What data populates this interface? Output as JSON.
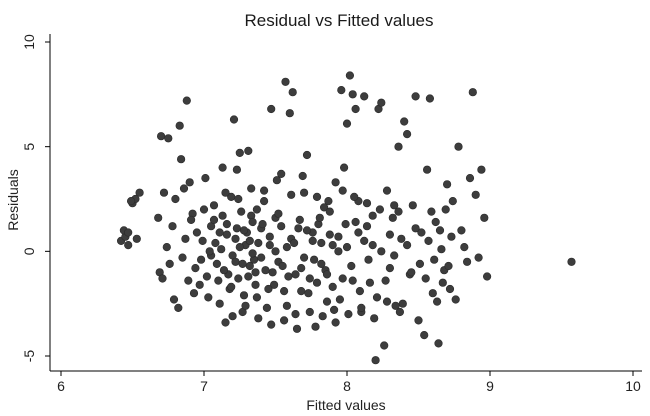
{
  "chart_data": {
    "type": "scatter",
    "title": "Residual vs Fitted values",
    "xlabel": "Fitted values",
    "ylabel": "Residuals",
    "xlim": [
      6,
      10
    ],
    "ylim": [
      -5,
      10
    ],
    "x_ticks": [
      6,
      7,
      8,
      9,
      10
    ],
    "y_ticks": [
      -5,
      0,
      5,
      10
    ],
    "x_tick_labels": [
      "6",
      "7",
      "8",
      "9",
      "10"
    ],
    "y_tick_labels": [
      "-5",
      "0",
      "5",
      "10"
    ],
    "grid": false,
    "legend": "none",
    "point_color": "#3d3d3d",
    "points": [
      [
        6.42,
        0.5
      ],
      [
        6.45,
        0.7
      ],
      [
        6.47,
        0.3
      ],
      [
        6.44,
        1.0
      ],
      [
        6.5,
        2.3
      ],
      [
        6.52,
        2.5
      ],
      [
        6.55,
        2.8
      ],
      [
        6.49,
        2.4
      ],
      [
        6.53,
        0.6
      ],
      [
        6.47,
        0.9
      ],
      [
        6.7,
        5.5
      ],
      [
        6.75,
        5.4
      ],
      [
        6.83,
        6.0
      ],
      [
        6.88,
        7.2
      ],
      [
        6.68,
        1.6
      ],
      [
        6.72,
        2.8
      ],
      [
        6.78,
        1.2
      ],
      [
        6.8,
        2.5
      ],
      [
        6.69,
        -1.0
      ],
      [
        6.71,
        -1.3
      ],
      [
        6.74,
        0.2
      ],
      [
        6.76,
        -0.6
      ],
      [
        6.79,
        -2.3
      ],
      [
        6.82,
        -2.7
      ],
      [
        6.84,
        4.4
      ],
      [
        6.86,
        3.0
      ],
      [
        6.9,
        3.3
      ],
      [
        6.92,
        1.8
      ],
      [
        6.94,
        -0.8
      ],
      [
        6.97,
        -1.6
      ],
      [
        6.99,
        0.5
      ],
      [
        7.01,
        3.5
      ],
      [
        7.03,
        -2.2
      ],
      [
        7.05,
        1.2
      ],
      [
        7.07,
        2.2
      ],
      [
        7.09,
        -0.6
      ],
      [
        7.11,
        0.9
      ],
      [
        7.13,
        4.0
      ],
      [
        7.15,
        -3.4
      ],
      [
        7.17,
        -1.1
      ],
      [
        7.19,
        2.6
      ],
      [
        7.21,
        6.3
      ],
      [
        7.23,
        3.9
      ],
      [
        7.25,
        4.7
      ],
      [
        7.27,
        -2.9
      ],
      [
        7.29,
        0.3
      ],
      [
        7.31,
        4.8
      ],
      [
        7.33,
        1.7
      ],
      [
        7.35,
        -0.4
      ],
      [
        7.37,
        2.0
      ],
      [
        7.12,
        0.1
      ],
      [
        7.14,
        -0.9
      ],
      [
        7.16,
        1.3
      ],
      [
        7.18,
        -1.8
      ],
      [
        7.2,
        -0.2
      ],
      [
        7.22,
        0.6
      ],
      [
        7.24,
        -1.3
      ],
      [
        7.26,
        1.9
      ],
      [
        7.28,
        -2.1
      ],
      [
        7.3,
        0.9
      ],
      [
        7.32,
        -0.7
      ],
      [
        7.34,
        1.4
      ],
      [
        7.36,
        -1.6
      ],
      [
        7.38,
        0.4
      ],
      [
        7.4,
        -0.3
      ],
      [
        7.42,
        2.4
      ],
      [
        7.44,
        -2.7
      ],
      [
        7.46,
        0.7
      ],
      [
        7.48,
        -1.0
      ],
      [
        7.5,
        1.6
      ],
      [
        7.52,
        -0.5
      ],
      [
        7.54,
        3.7
      ],
      [
        7.56,
        -1.9
      ],
      [
        7.58,
        0.2
      ],
      [
        7.6,
        6.6
      ],
      [
        7.62,
        7.6
      ],
      [
        7.64,
        -3.0
      ],
      [
        7.66,
        1.1
      ],
      [
        7.68,
        -0.8
      ],
      [
        7.7,
        2.8
      ],
      [
        7.57,
        8.1
      ],
      [
        7.47,
        6.8
      ],
      [
        7.72,
        4.6
      ],
      [
        7.74,
        -1.3
      ],
      [
        7.76,
        0.5
      ],
      [
        7.78,
        -3.6
      ],
      [
        7.8,
        1.3
      ],
      [
        7.82,
        -0.6
      ],
      [
        7.84,
        2.1
      ],
      [
        7.86,
        -2.4
      ],
      [
        7.88,
        0.8
      ],
      [
        7.9,
        -1.7
      ],
      [
        7.92,
        3.3
      ],
      [
        7.94,
        0.0
      ],
      [
        7.96,
        7.7
      ],
      [
        7.98,
        4.0
      ],
      [
        8.0,
        6.1
      ],
      [
        8.02,
        8.4
      ],
      [
        8.04,
        7.5
      ],
      [
        8.06,
        6.8
      ],
      [
        8.08,
        2.4
      ],
      [
        8.1,
        -2.9
      ],
      [
        8.12,
        7.4
      ],
      [
        8.14,
        1.2
      ],
      [
        8.16,
        -1.5
      ],
      [
        8.18,
        0.3
      ],
      [
        8.2,
        -5.2
      ],
      [
        8.22,
        6.8
      ],
      [
        8.24,
        7.1
      ],
      [
        8.26,
        -4.5
      ],
      [
        8.28,
        2.9
      ],
      [
        8.3,
        -0.8
      ],
      [
        8.32,
        1.6
      ],
      [
        8.34,
        -2.6
      ],
      [
        8.36,
        5.0
      ],
      [
        8.38,
        0.6
      ],
      [
        8.4,
        6.2
      ],
      [
        8.42,
        5.6
      ],
      [
        8.44,
        -1.1
      ],
      [
        8.46,
        2.2
      ],
      [
        8.48,
        7.4
      ],
      [
        8.5,
        -3.3
      ],
      [
        8.52,
        0.9
      ],
      [
        8.54,
        -4.0
      ],
      [
        8.56,
        3.9
      ],
      [
        8.58,
        7.3
      ],
      [
        8.6,
        -2.0
      ],
      [
        8.62,
        1.4
      ],
      [
        8.64,
        -4.4
      ],
      [
        8.66,
        0.1
      ],
      [
        8.68,
        -0.9
      ],
      [
        8.7,
        3.2
      ],
      [
        8.72,
        -1.8
      ],
      [
        8.74,
        2.4
      ],
      [
        8.76,
        -2.3
      ],
      [
        8.78,
        5.0
      ],
      [
        8.8,
        1.0
      ],
      [
        8.82,
        0.2
      ],
      [
        8.84,
        -0.5
      ],
      [
        8.86,
        3.5
      ],
      [
        8.88,
        7.6
      ],
      [
        8.9,
        2.7
      ],
      [
        8.92,
        -0.3
      ],
      [
        8.94,
        3.9
      ],
      [
        8.96,
        1.6
      ],
      [
        8.98,
        -1.2
      ],
      [
        9.57,
        -0.5
      ],
      [
        7.05,
        -0.2
      ],
      [
        7.08,
        0.4
      ],
      [
        7.1,
        -1.4
      ],
      [
        7.13,
        1.7
      ],
      [
        7.16,
        0.8
      ],
      [
        7.19,
        -1.7
      ],
      [
        7.22,
        -0.5
      ],
      [
        7.25,
        0.2
      ],
      [
        7.28,
        1.0
      ],
      [
        7.31,
        -1.2
      ],
      [
        7.34,
        -0.1
      ],
      [
        7.37,
        -2.2
      ],
      [
        7.4,
        1.1
      ],
      [
        7.43,
        -0.9
      ],
      [
        7.46,
        0.3
      ],
      [
        7.49,
        -1.6
      ],
      [
        7.52,
        1.8
      ],
      [
        7.55,
        -0.7
      ],
      [
        7.58,
        -2.6
      ],
      [
        7.61,
        0.6
      ],
      [
        7.64,
        -1.1
      ],
      [
        7.67,
        1.5
      ],
      [
        7.7,
        -0.3
      ],
      [
        7.73,
        -2.0
      ],
      [
        7.76,
        0.9
      ],
      [
        7.79,
        -1.5
      ],
      [
        7.82,
        0.4
      ],
      [
        7.85,
        -0.9
      ],
      [
        7.88,
        1.9
      ],
      [
        7.91,
        -2.8
      ],
      [
        7.94,
        0.7
      ],
      [
        7.97,
        -1.3
      ],
      [
        8.0,
        0.2
      ],
      [
        8.03,
        -0.7
      ],
      [
        8.06,
        1.4
      ],
      [
        8.09,
        -1.9
      ],
      [
        8.12,
        0.5
      ],
      [
        8.15,
        -0.4
      ],
      [
        8.18,
        1.7
      ],
      [
        8.21,
        -2.2
      ],
      [
        8.24,
        0.0
      ],
      [
        8.27,
        -1.4
      ],
      [
        8.3,
        0.8
      ],
      [
        8.33,
        -0.2
      ],
      [
        8.36,
        1.9
      ],
      [
        8.39,
        -2.5
      ],
      [
        8.42,
        0.3
      ],
      [
        8.45,
        -1.0
      ],
      [
        8.48,
        1.1
      ],
      [
        8.51,
        -0.6
      ],
      [
        7.07,
        1.5
      ],
      [
        7.11,
        -2.5
      ],
      [
        7.15,
        2.8
      ],
      [
        7.2,
        -3.1
      ],
      [
        7.24,
        2.5
      ],
      [
        7.29,
        -2.6
      ],
      [
        7.33,
        3.0
      ],
      [
        7.38,
        -3.2
      ],
      [
        7.42,
        2.9
      ],
      [
        7.47,
        -3.5
      ],
      [
        7.51,
        3.4
      ],
      [
        7.56,
        -3.3
      ],
      [
        7.61,
        2.7
      ],
      [
        7.65,
        -3.7
      ],
      [
        7.69,
        3.6
      ],
      [
        7.74,
        -2.9
      ],
      [
        7.79,
        2.6
      ],
      [
        7.83,
        -3.1
      ],
      [
        7.87,
        2.4
      ],
      [
        7.92,
        -3.4
      ],
      [
        7.97,
        2.9
      ],
      [
        8.01,
        -3.0
      ],
      [
        8.05,
        2.6
      ],
      [
        8.1,
        -2.7
      ],
      [
        8.14,
        2.3
      ],
      [
        8.19,
        -3.2
      ],
      [
        8.23,
        2.0
      ],
      [
        8.28,
        -2.4
      ],
      [
        8.33,
        2.2
      ],
      [
        8.37,
        -2.9
      ],
      [
        6.95,
        0.9
      ],
      [
        6.98,
        -0.4
      ],
      [
        7.0,
        2.0
      ],
      [
        7.02,
        -1.2
      ],
      [
        7.04,
        0.0
      ],
      [
        6.93,
        -2.0
      ],
      [
        6.91,
        1.5
      ],
      [
        6.89,
        -1.4
      ],
      [
        6.87,
        0.6
      ],
      [
        6.85,
        -0.3
      ],
      [
        8.55,
        -1.3
      ],
      [
        8.57,
        0.5
      ],
      [
        8.59,
        1.9
      ],
      [
        8.61,
        -0.4
      ],
      [
        8.63,
        -2.4
      ],
      [
        8.65,
        1.0
      ],
      [
        8.67,
        -1.5
      ],
      [
        8.69,
        2.0
      ],
      [
        8.71,
        -0.7
      ],
      [
        8.73,
        0.7
      ],
      [
        7.23,
        1.1
      ],
      [
        7.27,
        -0.6
      ],
      [
        7.32,
        0.5
      ],
      [
        7.36,
        -1.0
      ],
      [
        7.41,
        1.3
      ],
      [
        7.45,
        -1.8
      ],
      [
        7.5,
        0.0
      ],
      [
        7.54,
        1.2
      ],
      [
        7.59,
        -1.2
      ],
      [
        7.63,
        0.4
      ],
      [
        7.68,
        -1.9
      ],
      [
        7.72,
        1.0
      ],
      [
        7.77,
        -0.4
      ],
      [
        7.81,
        1.6
      ],
      [
        7.86,
        -1.1
      ],
      [
        7.9,
        0.3
      ],
      [
        7.95,
        -2.3
      ],
      [
        7.99,
        1.3
      ],
      [
        8.04,
        -1.4
      ],
      [
        8.08,
        0.9
      ]
    ]
  }
}
